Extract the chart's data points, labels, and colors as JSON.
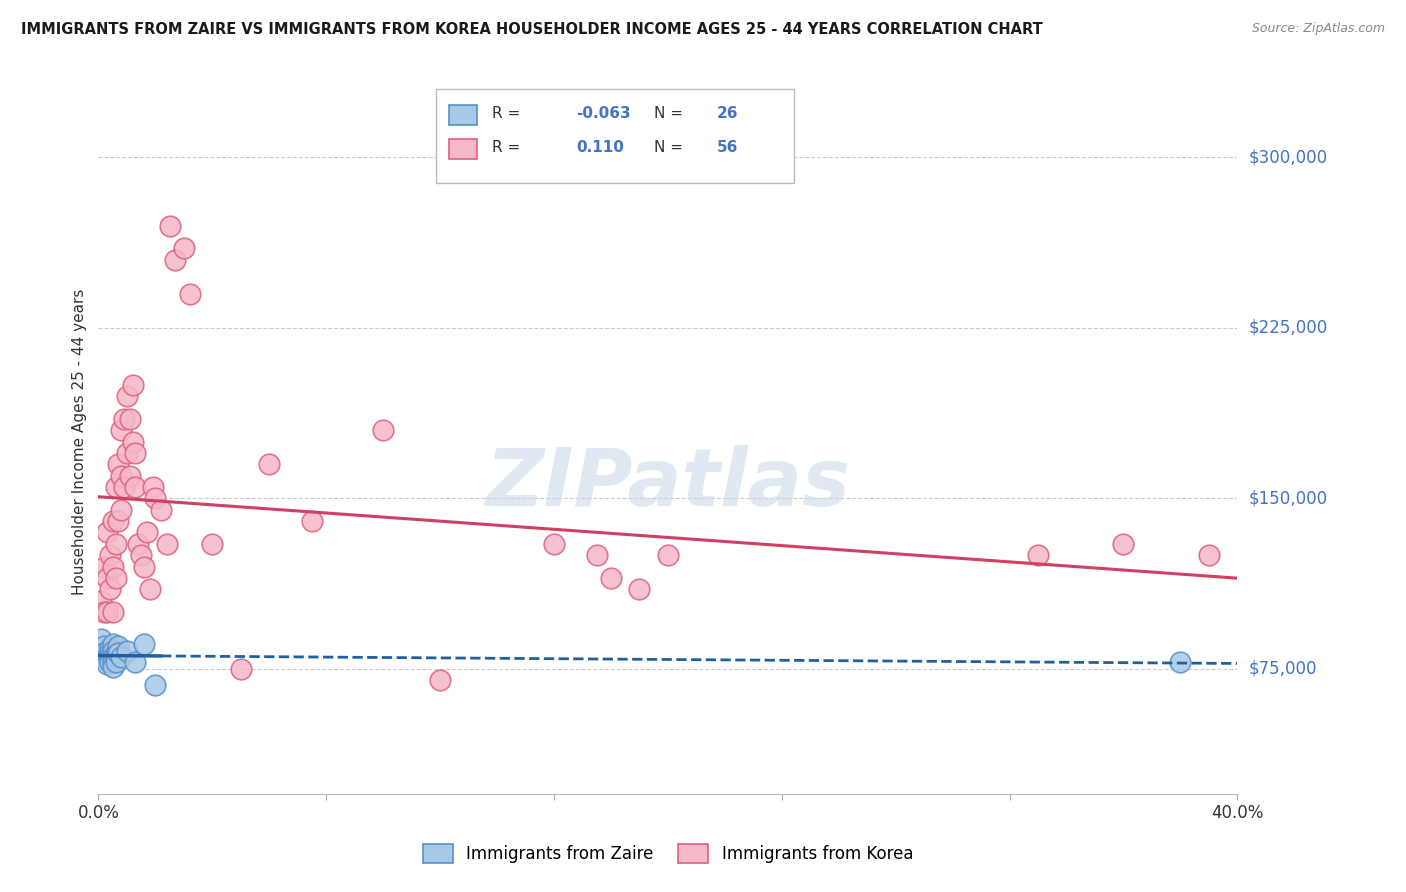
{
  "title": "IMMIGRANTS FROM ZAIRE VS IMMIGRANTS FROM KOREA HOUSEHOLDER INCOME AGES 25 - 44 YEARS CORRELATION CHART",
  "source": "Source: ZipAtlas.com",
  "ylabel": "Householder Income Ages 25 - 44 years",
  "ytick_labels": [
    "$75,000",
    "$150,000",
    "$225,000",
    "$300,000"
  ],
  "ytick_values": [
    75000,
    150000,
    225000,
    300000
  ],
  "xmin": 0.0,
  "xmax": 0.4,
  "ymin": 20000,
  "ymax": 330000,
  "legend_zaire": "Immigrants from Zaire",
  "legend_korea": "Immigrants from Korea",
  "R_zaire": "-0.063",
  "N_zaire": "26",
  "R_korea": "0.110",
  "N_korea": "56",
  "color_zaire_fill": "#A8C8E8",
  "color_zaire_edge": "#5590C8",
  "color_korea_fill": "#F5B8C8",
  "color_korea_edge": "#E06080",
  "color_zaire_line": "#2060A0",
  "color_korea_line": "#D04060",
  "watermark": "ZIPatlas",
  "zaire_x": [
    0.001,
    0.002,
    0.002,
    0.003,
    0.003,
    0.003,
    0.004,
    0.004,
    0.004,
    0.004,
    0.005,
    0.005,
    0.005,
    0.005,
    0.005,
    0.006,
    0.006,
    0.006,
    0.007,
    0.007,
    0.008,
    0.01,
    0.013,
    0.016,
    0.02,
    0.38
  ],
  "zaire_y": [
    88000,
    85000,
    82000,
    80000,
    79000,
    77000,
    84000,
    82000,
    80000,
    78000,
    86000,
    83000,
    80000,
    78000,
    76000,
    82000,
    80000,
    78000,
    85000,
    82000,
    80000,
    83000,
    78000,
    86000,
    68000,
    78000
  ],
  "korea_x": [
    0.001,
    0.002,
    0.002,
    0.003,
    0.003,
    0.003,
    0.004,
    0.004,
    0.005,
    0.005,
    0.005,
    0.006,
    0.006,
    0.006,
    0.007,
    0.007,
    0.008,
    0.008,
    0.008,
    0.009,
    0.009,
    0.01,
    0.01,
    0.011,
    0.011,
    0.012,
    0.012,
    0.013,
    0.013,
    0.014,
    0.015,
    0.016,
    0.017,
    0.018,
    0.019,
    0.02,
    0.022,
    0.024,
    0.025,
    0.027,
    0.03,
    0.032,
    0.04,
    0.05,
    0.06,
    0.075,
    0.1,
    0.12,
    0.16,
    0.175,
    0.18,
    0.19,
    0.2,
    0.33,
    0.36,
    0.39
  ],
  "korea_y": [
    105000,
    120000,
    100000,
    135000,
    115000,
    100000,
    125000,
    110000,
    140000,
    120000,
    100000,
    155000,
    130000,
    115000,
    165000,
    140000,
    180000,
    160000,
    145000,
    185000,
    155000,
    195000,
    170000,
    185000,
    160000,
    200000,
    175000,
    170000,
    155000,
    130000,
    125000,
    120000,
    135000,
    110000,
    155000,
    150000,
    145000,
    130000,
    270000,
    255000,
    260000,
    240000,
    130000,
    75000,
    165000,
    140000,
    180000,
    70000,
    130000,
    125000,
    115000,
    110000,
    125000,
    125000,
    130000,
    125000
  ]
}
